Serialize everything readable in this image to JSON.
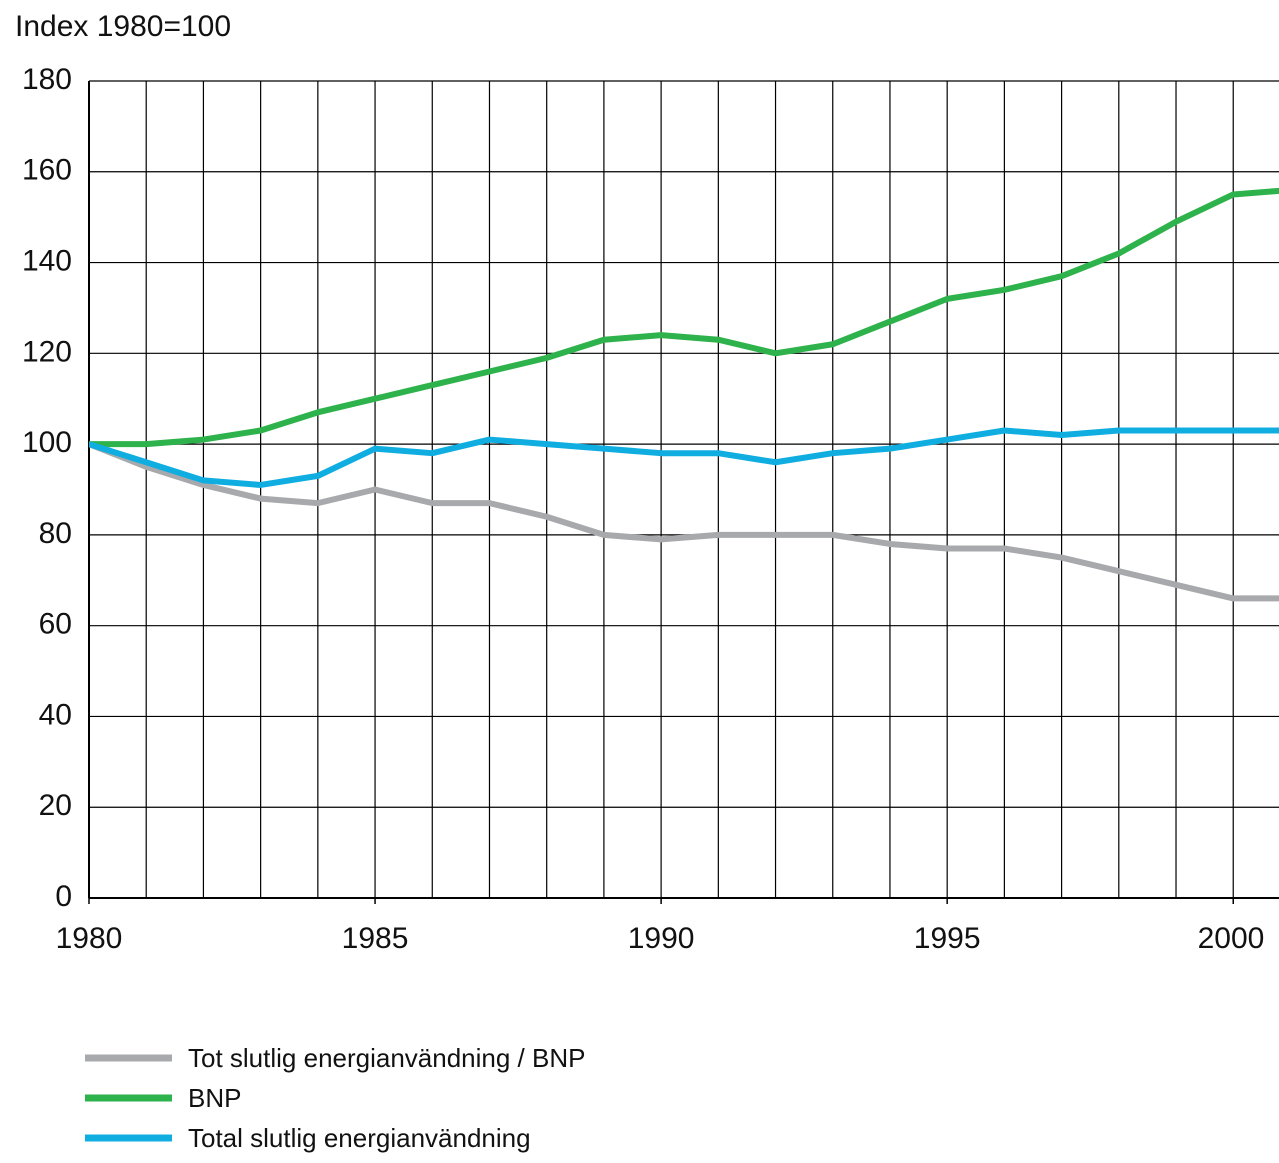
{
  "chart_data": {
    "type": "line",
    "y_axis_label": "Index 1980=100",
    "x": [
      1980,
      1981,
      1982,
      1983,
      1984,
      1985,
      1986,
      1987,
      1988,
      1989,
      1990,
      1991,
      1992,
      1993,
      1994,
      1995,
      1996,
      1997,
      1998,
      1999,
      2000,
      2001
    ],
    "series": [
      {
        "name": "Tot slutlig energianvändning / BNP",
        "color": "#a7a9ac",
        "values": [
          100,
          95,
          91,
          88,
          87,
          90,
          87,
          87,
          84,
          80,
          79,
          80,
          80,
          80,
          78,
          77,
          77,
          75,
          72,
          69,
          66,
          66
        ]
      },
      {
        "name": "BNP",
        "color": "#2eb24b",
        "values": [
          100,
          100,
          101,
          103,
          107,
          110,
          113,
          116,
          119,
          123,
          124,
          123,
          120,
          122,
          127,
          132,
          134,
          137,
          142,
          149,
          155,
          156
        ]
      },
      {
        "name": "Total slutlig energianvändning",
        "color": "#10aee0",
        "values": [
          100,
          96,
          92,
          91,
          93,
          99,
          98,
          101,
          100,
          99,
          98,
          98,
          96,
          98,
          99,
          101,
          103,
          102,
          103,
          103,
          103,
          103
        ]
      }
    ],
    "xlim": [
      1980,
      2000.8
    ],
    "xticks": [
      1980,
      1985,
      1990,
      1995,
      2000
    ],
    "ylim": [
      0,
      180
    ],
    "yticks": [
      0,
      20,
      40,
      60,
      80,
      100,
      120,
      140,
      160,
      180
    ],
    "grid": true,
    "legend": "bottom"
  }
}
